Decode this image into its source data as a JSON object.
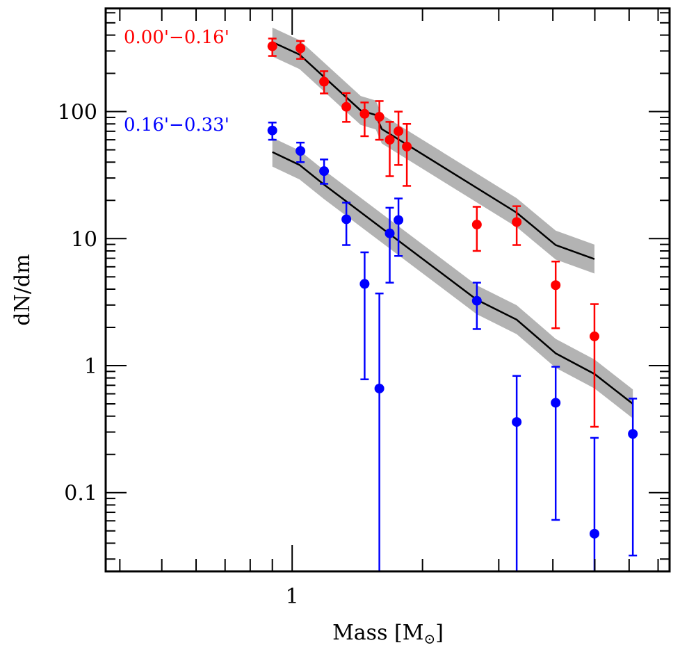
{
  "chart_data": {
    "type": "scatter",
    "xscale": "log",
    "yscale": "log",
    "xlim": [
      0.371,
      7.44
    ],
    "ylim": [
      0.024,
      650
    ],
    "xlabel": "Mass [M",
    "xlabel_sub": "⊙",
    "xlabel_end": "]",
    "ylabel": "dN/dm",
    "xticks_labeled": [
      {
        "v": 1,
        "label": "1"
      }
    ],
    "yticks_labeled": [
      {
        "v": 100,
        "label": "100"
      },
      {
        "v": 10,
        "label": "10"
      },
      {
        "v": 1,
        "label": "1"
      },
      {
        "v": 0.1,
        "label": "0.1"
      }
    ],
    "grid": false,
    "series": [
      {
        "name": "0.00'−0.16'",
        "color": "#ff0000",
        "points": [
          {
            "x": 0.9,
            "y": 327,
            "lo": 274,
            "hi": 376
          },
          {
            "x": 1.045,
            "y": 315,
            "lo": 260,
            "hi": 360
          },
          {
            "x": 1.185,
            "y": 172,
            "lo": 139,
            "hi": 208
          },
          {
            "x": 1.334,
            "y": 109,
            "lo": 83,
            "hi": 140
          },
          {
            "x": 1.47,
            "y": 96,
            "lo": 64,
            "hi": 118
          },
          {
            "x": 1.59,
            "y": 91,
            "lo": 60,
            "hi": 121
          },
          {
            "x": 1.68,
            "y": 60,
            "lo": 31,
            "hi": 83
          },
          {
            "x": 1.76,
            "y": 70,
            "lo": 38,
            "hi": 100
          },
          {
            "x": 1.84,
            "y": 53,
            "lo": 26,
            "hi": 80
          },
          {
            "x": 2.67,
            "y": 12.9,
            "lo": 8.0,
            "hi": 17.8
          },
          {
            "x": 3.3,
            "y": 13.5,
            "lo": 8.9,
            "hi": 18
          },
          {
            "x": 4.06,
            "y": 4.3,
            "lo": 1.97,
            "hi": 6.6
          },
          {
            "x": 4.99,
            "y": 1.7,
            "lo": 0.33,
            "hi": 3.05
          }
        ],
        "model": {
          "x": [
            0.9,
            1.04,
            1.44,
            1.56,
            1.61,
            3.3,
            4.06,
            4.99
          ],
          "y": [
            353,
            281,
            102,
            94,
            73,
            16,
            8.9,
            6.9
          ],
          "band_factor": 1.3
        }
      },
      {
        "name": "0.16'−0.33'",
        "color": "#0000ff",
        "points": [
          {
            "x": 0.9,
            "y": 71,
            "lo": 60,
            "hi": 82
          },
          {
            "x": 1.045,
            "y": 49,
            "lo": 40,
            "hi": 57
          },
          {
            "x": 1.185,
            "y": 34,
            "lo": 27,
            "hi": 42
          },
          {
            "x": 1.334,
            "y": 14.2,
            "lo": 8.9,
            "hi": 19.2
          },
          {
            "x": 1.47,
            "y": 4.4,
            "lo": 0.78,
            "hi": 7.8
          },
          {
            "x": 1.59,
            "y": 0.66,
            "lo": 0.024,
            "hi": 3.7
          },
          {
            "x": 1.68,
            "y": 11,
            "lo": 4.5,
            "hi": 17.5
          },
          {
            "x": 1.76,
            "y": 14,
            "lo": 7.3,
            "hi": 20.7
          },
          {
            "x": 2.67,
            "y": 3.24,
            "lo": 1.94,
            "hi": 4.5
          },
          {
            "x": 3.3,
            "y": 0.36,
            "lo": 0.024,
            "hi": 0.83
          },
          {
            "x": 4.06,
            "y": 0.51,
            "lo": 0.061,
            "hi": 0.98
          },
          {
            "x": 4.99,
            "y": 0.0475,
            "lo": 0.024,
            "hi": 0.27
          },
          {
            "x": 6.12,
            "y": 0.29,
            "lo": 0.032,
            "hi": 0.55
          }
        ],
        "model": {
          "x": [
            0.9,
            1.04,
            1.185,
            1.59,
            2.67,
            3.3,
            4.06,
            4.99,
            6.12
          ],
          "y": [
            48,
            38,
            26.6,
            12.5,
            3.3,
            2.3,
            1.25,
            0.86,
            0.5
          ],
          "band_factor": 1.3
        }
      }
    ]
  }
}
